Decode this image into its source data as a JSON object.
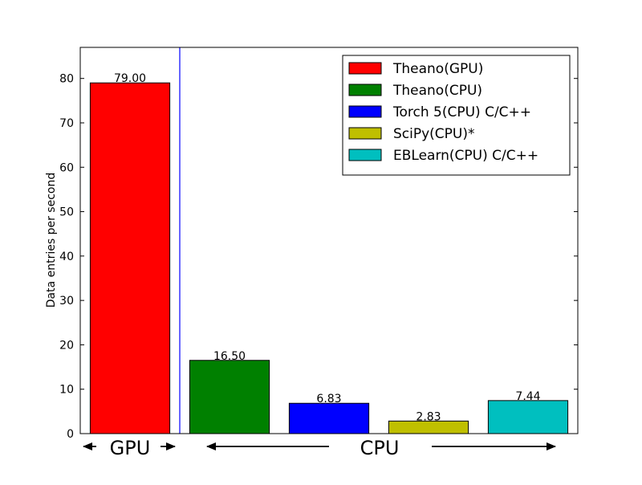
{
  "chart_data": {
    "type": "bar",
    "title": "",
    "xlabel": "",
    "ylabel": "Data entries per second",
    "ylim": [
      0,
      87
    ],
    "yticks": [
      0,
      10,
      20,
      30,
      40,
      50,
      60,
      70,
      80
    ],
    "grid": false,
    "legend_position": "top-right",
    "series": [
      {
        "name": "Theano(GPU)",
        "value": 79.0,
        "label": "79.00",
        "color": "#ff0000"
      },
      {
        "name": "Theano(CPU)",
        "value": 16.5,
        "label": "16.50",
        "color": "#008000"
      },
      {
        "name": "Torch 5(CPU) C/C++",
        "value": 6.83,
        "label": "6.83",
        "color": "#0000ff"
      },
      {
        "name": "SciPy(CPU)*",
        "value": 2.83,
        "label": "2.83",
        "color": "#bfbf00"
      },
      {
        "name": "EBLearn(CPU) C/C++",
        "value": 7.44,
        "label": "7.44",
        "color": "#00bfbf"
      }
    ],
    "group_labels": {
      "gpu": "GPU",
      "cpu": "CPU"
    },
    "divider_color": "#0000ff"
  }
}
